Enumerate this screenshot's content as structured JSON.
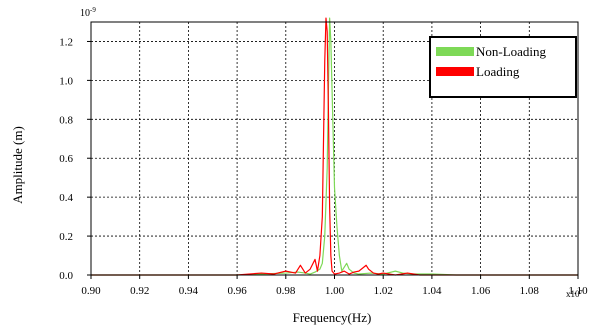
{
  "chart_data": {
    "type": "line",
    "xlabel": "Frequency(Hz)",
    "ylabel": "Amplitude (m)",
    "x_multiplier": "x10",
    "x_multiplier_exp": "7",
    "y_multiplier": "10",
    "y_multiplier_exp": "-9",
    "xlim": [
      0.9,
      1.1
    ],
    "ylim": [
      0.0,
      1.3
    ],
    "x_ticks": [
      "0.90",
      "0.92",
      "0.94",
      "0.96",
      "0.98",
      "1.00",
      "1.02",
      "1.04",
      "1.06",
      "1.08",
      "1.10"
    ],
    "y_ticks": [
      "0.0",
      "0.2",
      "0.4",
      "0.6",
      "0.8",
      "1.0",
      "1.2"
    ],
    "grid": true,
    "legend_position": "top-right",
    "series": [
      {
        "name": "Non-Loading",
        "color": "#7ed957",
        "x": [
          0.9,
          0.96,
          0.97,
          0.98,
          0.985,
          0.988,
          0.99,
          0.992,
          0.994,
          0.995,
          0.996,
          0.997,
          0.9975,
          0.998,
          0.9985,
          0.999,
          0.9995,
          1.0,
          1.001,
          1.002,
          1.003,
          1.004,
          1.005,
          1.006,
          1.008,
          1.01,
          1.015,
          1.02,
          1.025,
          1.028,
          1.032,
          1.04,
          1.05,
          1.1
        ],
        "y": [
          0.0,
          0.0,
          0.005,
          0.01,
          0.015,
          0.01,
          0.005,
          0.015,
          0.03,
          0.06,
          0.2,
          0.55,
          0.95,
          1.32,
          1.2,
          0.95,
          0.7,
          0.45,
          0.25,
          0.1,
          0.02,
          0.04,
          0.06,
          0.03,
          0.01,
          0.005,
          0.01,
          0.005,
          0.02,
          0.01,
          0.005,
          0.005,
          0.0,
          0.0
        ]
      },
      {
        "name": "Loading",
        "color": "#ff0000",
        "x": [
          0.9,
          0.96,
          0.97,
          0.975,
          0.98,
          0.984,
          0.986,
          0.988,
          0.99,
          0.992,
          0.993,
          0.994,
          0.995,
          0.9955,
          0.996,
          0.9965,
          0.997,
          0.9975,
          0.998,
          0.9985,
          0.999,
          1.0,
          1.002,
          1.004,
          1.006,
          1.008,
          1.01,
          1.012,
          1.013,
          1.014,
          1.016,
          1.018,
          1.02,
          1.025,
          1.03,
          1.035,
          1.045,
          1.1
        ],
        "y": [
          0.0,
          0.0,
          0.01,
          0.005,
          0.02,
          0.01,
          0.05,
          0.01,
          0.03,
          0.08,
          0.02,
          0.1,
          0.3,
          0.7,
          1.1,
          1.32,
          1.25,
          0.85,
          0.35,
          0.1,
          0.02,
          0.005,
          0.01,
          0.02,
          0.005,
          0.015,
          0.02,
          0.04,
          0.05,
          0.03,
          0.01,
          0.005,
          0.01,
          0.0,
          0.01,
          0.0,
          0.0,
          0.0
        ]
      }
    ]
  }
}
